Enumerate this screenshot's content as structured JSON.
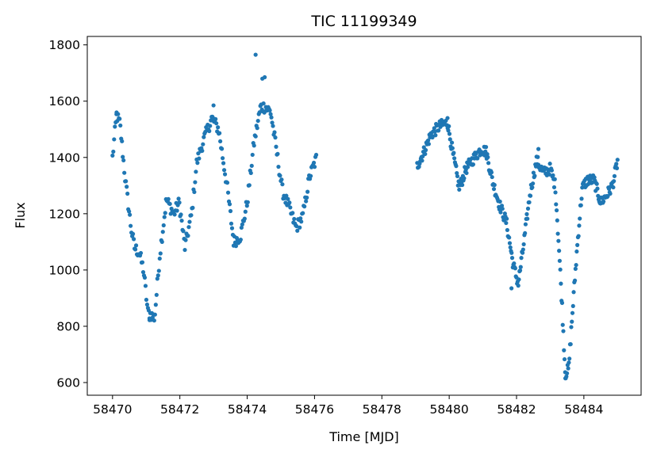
{
  "chart_data": {
    "type": "scatter",
    "title": "TIC 11199349",
    "xlabel": "Time [MJD]",
    "ylabel": "Flux",
    "xlim": [
      58469.25,
      58485.7
    ],
    "ylim": [
      555,
      1830
    ],
    "x_ticks": [
      58470,
      58472,
      58474,
      58476,
      58478,
      58480,
      58482,
      58484
    ],
    "y_ticks": [
      600,
      800,
      1000,
      1200,
      1400,
      1600,
      1800
    ],
    "grid": false,
    "legend": "none",
    "marker_color": "#1f77b4",
    "series": [
      {
        "segments": [
          {
            "x0": 58470.0,
            "x1": 58476.05,
            "points": 260,
            "knots": [
              [
                58470.0,
                1400
              ],
              [
                58470.12,
                1550
              ],
              [
                58470.22,
                1520
              ],
              [
                58470.38,
                1320
              ],
              [
                58470.55,
                1150
              ],
              [
                58470.65,
                1080
              ],
              [
                58470.8,
                1060
              ],
              [
                58470.92,
                1000
              ],
              [
                58471.05,
                850
              ],
              [
                58471.25,
                830
              ],
              [
                58471.4,
                1050
              ],
              [
                58471.6,
                1250
              ],
              [
                58471.82,
                1200
              ],
              [
                58471.98,
                1240
              ],
              [
                58472.15,
                1080
              ],
              [
                58472.35,
                1200
              ],
              [
                58472.5,
                1380
              ],
              [
                58472.7,
                1460
              ],
              [
                58472.95,
                1540
              ],
              [
                58473.15,
                1500
              ],
              [
                58473.4,
                1300
              ],
              [
                58473.6,
                1100
              ],
              [
                58473.8,
                1120
              ],
              [
                58474.0,
                1240
              ],
              [
                58474.2,
                1450
              ],
              [
                58474.4,
                1580
              ],
              [
                58474.55,
                1580
              ],
              [
                58474.7,
                1560
              ],
              [
                58474.85,
                1440
              ],
              [
                58475.05,
                1280
              ],
              [
                58475.25,
                1220
              ],
              [
                58475.45,
                1150
              ],
              [
                58475.65,
                1190
              ],
              [
                58475.85,
                1330
              ],
              [
                58476.05,
                1395
              ]
            ],
            "noise": 22,
            "outliers": [
              [
                58474.25,
                1765
              ],
              [
                58474.52,
                1685
              ],
              [
                58474.45,
                1680
              ],
              [
                58471.1,
                822
              ],
              [
                58473.0,
                1585
              ],
              [
                58470.12,
                1560
              ]
            ]
          },
          {
            "x0": 58479.05,
            "x1": 58485.0,
            "points": 330,
            "knots": [
              [
                58479.05,
                1370
              ],
              [
                58479.25,
                1420
              ],
              [
                58479.45,
                1480
              ],
              [
                58479.7,
                1510
              ],
              [
                58479.95,
                1525
              ],
              [
                58480.1,
                1420
              ],
              [
                58480.3,
                1290
              ],
              [
                58480.5,
                1360
              ],
              [
                58480.75,
                1400
              ],
              [
                58480.95,
                1430
              ],
              [
                58481.1,
                1420
              ],
              [
                58481.3,
                1310
              ],
              [
                58481.5,
                1230
              ],
              [
                58481.7,
                1170
              ],
              [
                58481.9,
                1020
              ],
              [
                58482.05,
                950
              ],
              [
                58482.2,
                1080
              ],
              [
                58482.4,
                1270
              ],
              [
                58482.6,
                1390
              ],
              [
                58482.8,
                1345
              ],
              [
                58483.0,
                1360
              ],
              [
                58483.15,
                1300
              ],
              [
                58483.25,
                1100
              ],
              [
                58483.35,
                880
              ],
              [
                58483.45,
                630
              ],
              [
                58483.55,
                650
              ],
              [
                58483.65,
                830
              ],
              [
                58483.8,
                1080
              ],
              [
                58483.95,
                1290
              ],
              [
                58484.1,
                1320
              ],
              [
                58484.3,
                1320
              ],
              [
                58484.5,
                1240
              ],
              [
                58484.7,
                1270
              ],
              [
                58484.85,
                1300
              ],
              [
                58485.0,
                1385
              ]
            ],
            "noise": 20,
            "outliers": [
              [
                58483.45,
                615
              ],
              [
                58482.65,
                1430
              ],
              [
                58479.95,
                1540
              ],
              [
                58481.85,
                935
              ]
            ]
          }
        ]
      }
    ]
  }
}
